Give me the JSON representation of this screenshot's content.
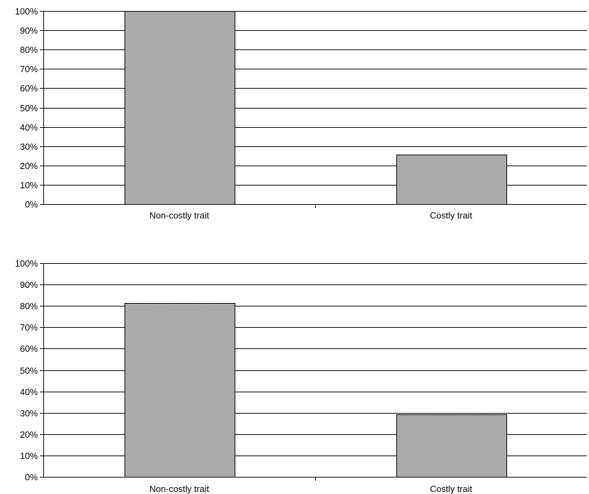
{
  "chart_data": [
    {
      "type": "bar",
      "title": "",
      "xlabel": "",
      "ylabel": "",
      "categories": [
        "Non-costly trait",
        "Costly trait"
      ],
      "values": [
        100,
        25.5
      ],
      "ylim": [
        0,
        100
      ],
      "yticks": [
        "0%",
        "10%",
        "20%",
        "30%",
        "40%",
        "50%",
        "60%",
        "70%",
        "80%",
        "90%",
        "100%"
      ],
      "grid": true,
      "legend": "none",
      "bar_color": "#a8a8a8"
    },
    {
      "type": "bar",
      "title": "",
      "xlabel": "",
      "ylabel": "",
      "categories": [
        "Non-costly trait",
        "Costly trait"
      ],
      "values": [
        81.3,
        29.3
      ],
      "ylim": [
        0,
        100
      ],
      "yticks": [
        "0%",
        "10%",
        "20%",
        "30%",
        "40%",
        "50%",
        "60%",
        "70%",
        "80%",
        "90%",
        "100%"
      ],
      "grid": true,
      "legend": "none",
      "bar_color": "#a8a8a8"
    }
  ]
}
